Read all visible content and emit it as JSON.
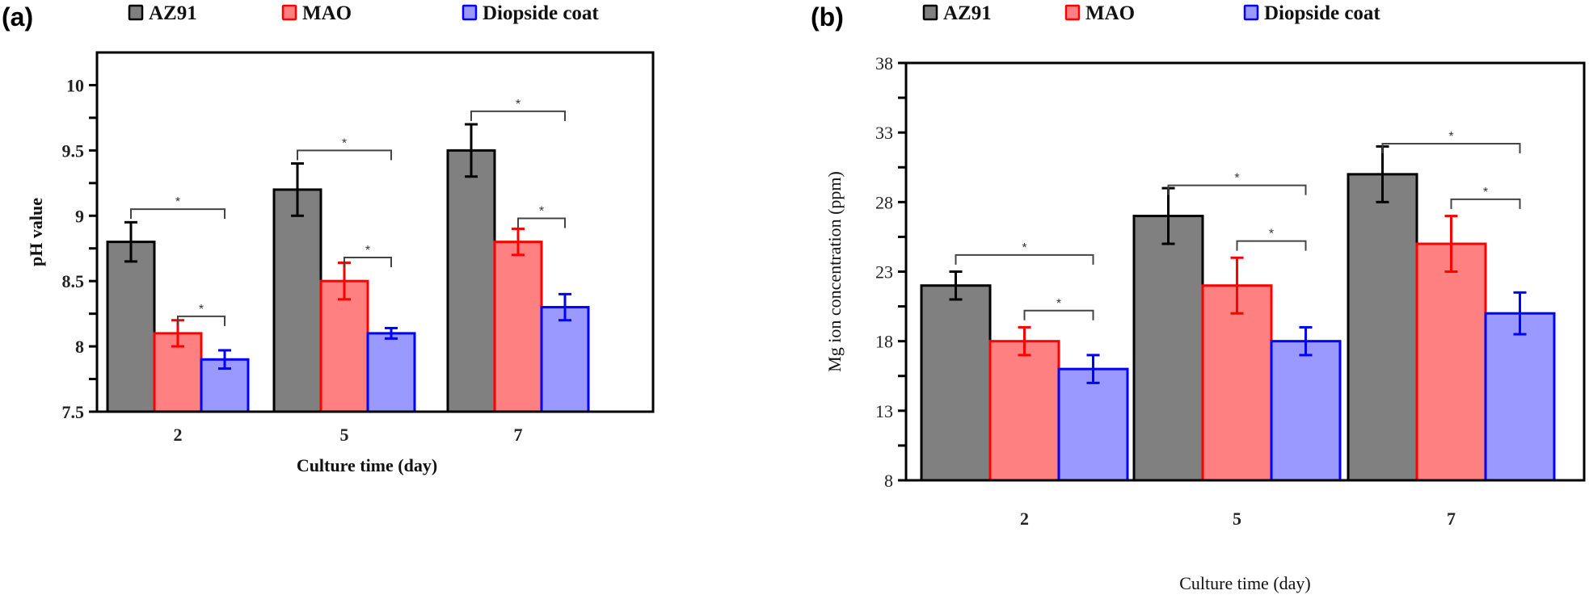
{
  "chart_data": [
    {
      "type": "bar",
      "panel_label": "(a)",
      "title": "",
      "xlabel": "Culture time (day)",
      "ylabel": "pH value",
      "ylim": [
        7.5,
        10.25
      ],
      "yticks": [
        7.5,
        8,
        8.5,
        9,
        9.5,
        10
      ],
      "ytick_labels": [
        "7.5",
        "8",
        "8.5",
        "9",
        "9.5",
        "10"
      ],
      "minor_ticks": true,
      "grid": false,
      "legend_position": "top",
      "categories": [
        "2",
        "5",
        "7"
      ],
      "series": [
        {
          "name": "AZ91",
          "values": [
            8.8,
            9.2,
            9.5
          ],
          "errors": [
            0.15,
            0.2,
            0.2
          ],
          "fill": "#808080",
          "stroke": "#000000"
        },
        {
          "name": "MAO",
          "values": [
            8.1,
            8.5,
            8.8
          ],
          "errors": [
            0.1,
            0.14,
            0.1
          ],
          "fill": "#ff8080",
          "stroke": "#ff0000"
        },
        {
          "name": "Diopside coat",
          "values": [
            7.9,
            8.1,
            8.3
          ],
          "errors": [
            0.07,
            0.04,
            0.1
          ],
          "fill": "#9999ff",
          "stroke": "#0000ff"
        }
      ],
      "significance": [
        {
          "category": "2",
          "from": "AZ91",
          "to": "Diopside coat",
          "label": "*",
          "level": 9.05
        },
        {
          "category": "2",
          "from": "MAO",
          "to": "Diopside coat",
          "label": "*",
          "level": 8.23
        },
        {
          "category": "5",
          "from": "AZ91",
          "to": "Diopside coat",
          "label": "*",
          "level": 9.5
        },
        {
          "category": "5",
          "from": "MAO",
          "to": "Diopside coat",
          "label": "*",
          "level": 8.68
        },
        {
          "category": "7",
          "from": "AZ91",
          "to": "Diopside coat",
          "label": "*",
          "level": 9.8
        },
        {
          "category": "7",
          "from": "MAO",
          "to": "Diopside coat",
          "label": "*",
          "level": 8.98
        }
      ]
    },
    {
      "type": "bar",
      "panel_label": "(b)",
      "title": "",
      "xlabel": "Culture time (day)",
      "ylabel": "Mg ion concentration (ppm)",
      "ylim": [
        8,
        38
      ],
      "yticks": [
        8,
        13,
        18,
        23,
        28,
        33,
        38
      ],
      "ytick_labels": [
        "8",
        "13",
        "18",
        "23",
        "28",
        "33",
        "38"
      ],
      "minor_ticks": true,
      "grid": false,
      "legend_position": "top",
      "categories": [
        "2",
        "5",
        "7"
      ],
      "series": [
        {
          "name": "AZ91",
          "values": [
            22,
            27,
            30
          ],
          "errors": [
            1,
            2,
            2
          ],
          "fill": "#808080",
          "stroke": "#000000"
        },
        {
          "name": "MAO",
          "values": [
            18,
            22,
            25
          ],
          "errors": [
            1,
            2,
            2
          ],
          "fill": "#ff8080",
          "stroke": "#ff0000"
        },
        {
          "name": "Diopside coat",
          "values": [
            16,
            18,
            20
          ],
          "errors": [
            1,
            1,
            1.5
          ],
          "fill": "#9999ff",
          "stroke": "#0000ff"
        }
      ],
      "significance": [
        {
          "category": "2",
          "from": "AZ91",
          "to": "Diopside coat",
          "label": "*",
          "level": 24.2
        },
        {
          "category": "2",
          "from": "MAO",
          "to": "Diopside coat",
          "label": "*",
          "level": 20.2
        },
        {
          "category": "5",
          "from": "AZ91",
          "to": "Diopside coat",
          "label": "*",
          "level": 29.2
        },
        {
          "category": "5",
          "from": "MAO",
          "to": "Diopside coat",
          "label": "*",
          "level": 25.2
        },
        {
          "category": "7",
          "from": "AZ91",
          "to": "Diopside coat",
          "label": "*",
          "level": 32.2
        },
        {
          "category": "7",
          "from": "MAO",
          "to": "Diopside coat",
          "label": "*",
          "level": 28.2
        }
      ]
    }
  ]
}
